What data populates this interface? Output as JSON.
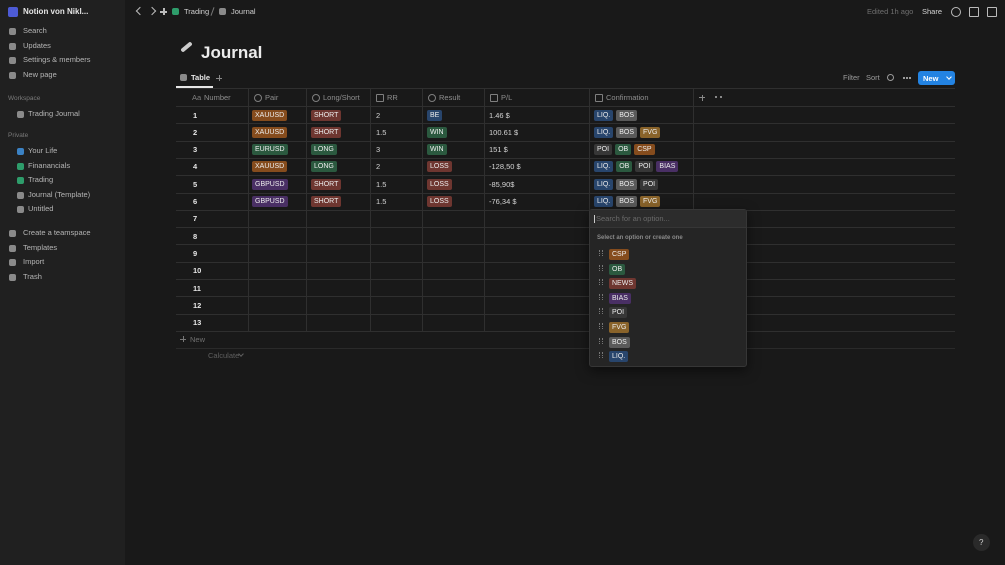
{
  "sidebar": {
    "workspace_name": "Notion von Nikl...",
    "nav": [
      "Search",
      "Updates",
      "Settings & members",
      "New page"
    ],
    "workspace_label": "Workspace",
    "workspace_items": [
      "Trading Journal"
    ],
    "private_label": "Private",
    "private_items": [
      "Your Life",
      "Finanancials",
      "Trading",
      "Journal (Template)",
      "Untitled"
    ],
    "bottom": [
      "Create a teamspace",
      "Templates",
      "Import",
      "Trash"
    ]
  },
  "topbar": {
    "breadcrumb": [
      "Trading",
      "Journal"
    ],
    "edited": "Edited 1h ago",
    "share": "Share"
  },
  "page": {
    "title": "Journal",
    "view_tab": "Table",
    "filter": "Filter",
    "sort": "Sort",
    "new_button": "New"
  },
  "table": {
    "columns": [
      {
        "icon": "Aa",
        "name": "Number"
      },
      {
        "name": "Pair"
      },
      {
        "name": "Long/Short"
      },
      {
        "name": "RR"
      },
      {
        "name": "Result"
      },
      {
        "name": "P/L"
      },
      {
        "name": "Confirmation"
      }
    ],
    "rows": [
      {
        "number": 1,
        "pair": {
          "text": "XAUUSD",
          "color": "orange"
        },
        "side": {
          "text": "SHORT",
          "color": "red"
        },
        "rr": "2",
        "result": {
          "text": "BE",
          "color": "blue"
        },
        "pl": "1.46 $",
        "confirmation": [
          {
            "text": "LIQ.",
            "color": "blue"
          },
          {
            "text": "BOS",
            "color": "gray"
          }
        ]
      },
      {
        "number": 2,
        "pair": {
          "text": "XAUUSD",
          "color": "orange"
        },
        "side": {
          "text": "SHORT",
          "color": "red"
        },
        "rr": "1.5",
        "result": {
          "text": "WIN",
          "color": "green"
        },
        "pl": "100.61 $",
        "confirmation": [
          {
            "text": "LIQ.",
            "color": "blue"
          },
          {
            "text": "BOS",
            "color": "gray"
          },
          {
            "text": "FVG",
            "color": "yellow"
          }
        ]
      },
      {
        "number": 3,
        "pair": {
          "text": "EURUSD",
          "color": "green"
        },
        "side": {
          "text": "LONG",
          "color": "green"
        },
        "rr": "3",
        "result": {
          "text": "WIN",
          "color": "green"
        },
        "pl": "151 $",
        "confirmation": [
          {
            "text": "POI",
            "color": "default"
          },
          {
            "text": "OB",
            "color": "green"
          },
          {
            "text": "CSP",
            "color": "orange"
          }
        ]
      },
      {
        "number": 4,
        "pair": {
          "text": "XAUUSD",
          "color": "orange"
        },
        "side": {
          "text": "LONG",
          "color": "green"
        },
        "rr": "2",
        "result": {
          "text": "LOSS",
          "color": "red"
        },
        "pl": "-128,50 $",
        "confirmation": [
          {
            "text": "LIQ.",
            "color": "blue"
          },
          {
            "text": "OB",
            "color": "green"
          },
          {
            "text": "POI",
            "color": "default"
          },
          {
            "text": "BIAS",
            "color": "purple"
          }
        ]
      },
      {
        "number": 5,
        "pair": {
          "text": "GBPUSD",
          "color": "purple"
        },
        "side": {
          "text": "SHORT",
          "color": "red"
        },
        "rr": "1.5",
        "result": {
          "text": "LOSS",
          "color": "red"
        },
        "pl": "-85,90$",
        "confirmation": [
          {
            "text": "LIQ.",
            "color": "blue"
          },
          {
            "text": "BOS",
            "color": "gray"
          },
          {
            "text": "POI",
            "color": "default"
          }
        ]
      },
      {
        "number": 6,
        "pair": {
          "text": "GBPUSD",
          "color": "purple"
        },
        "side": {
          "text": "SHORT",
          "color": "red"
        },
        "rr": "1.5",
        "result": {
          "text": "LOSS",
          "color": "red"
        },
        "pl": "-76,34 $",
        "confirmation": [
          {
            "text": "LIQ.",
            "color": "blue"
          },
          {
            "text": "BOS",
            "color": "gray"
          },
          {
            "text": "FVG",
            "color": "yellow"
          }
        ]
      },
      {
        "number": 7
      },
      {
        "number": 8
      },
      {
        "number": 9
      },
      {
        "number": 10
      },
      {
        "number": 11
      },
      {
        "number": 12
      },
      {
        "number": 13
      }
    ],
    "new_row": "New",
    "calculate": "Calculate"
  },
  "dropdown": {
    "placeholder": "Search for an option...",
    "hint": "Select an option or create one",
    "options": [
      {
        "text": "CSP",
        "color": "orange"
      },
      {
        "text": "OB",
        "color": "green"
      },
      {
        "text": "NEWS",
        "color": "red"
      },
      {
        "text": "BIAS",
        "color": "purple"
      },
      {
        "text": "POI",
        "color": "default"
      },
      {
        "text": "FVG",
        "color": "yellow"
      },
      {
        "text": "BOS",
        "color": "gray"
      },
      {
        "text": "LIQ.",
        "color": "blue"
      }
    ]
  },
  "help": "?"
}
